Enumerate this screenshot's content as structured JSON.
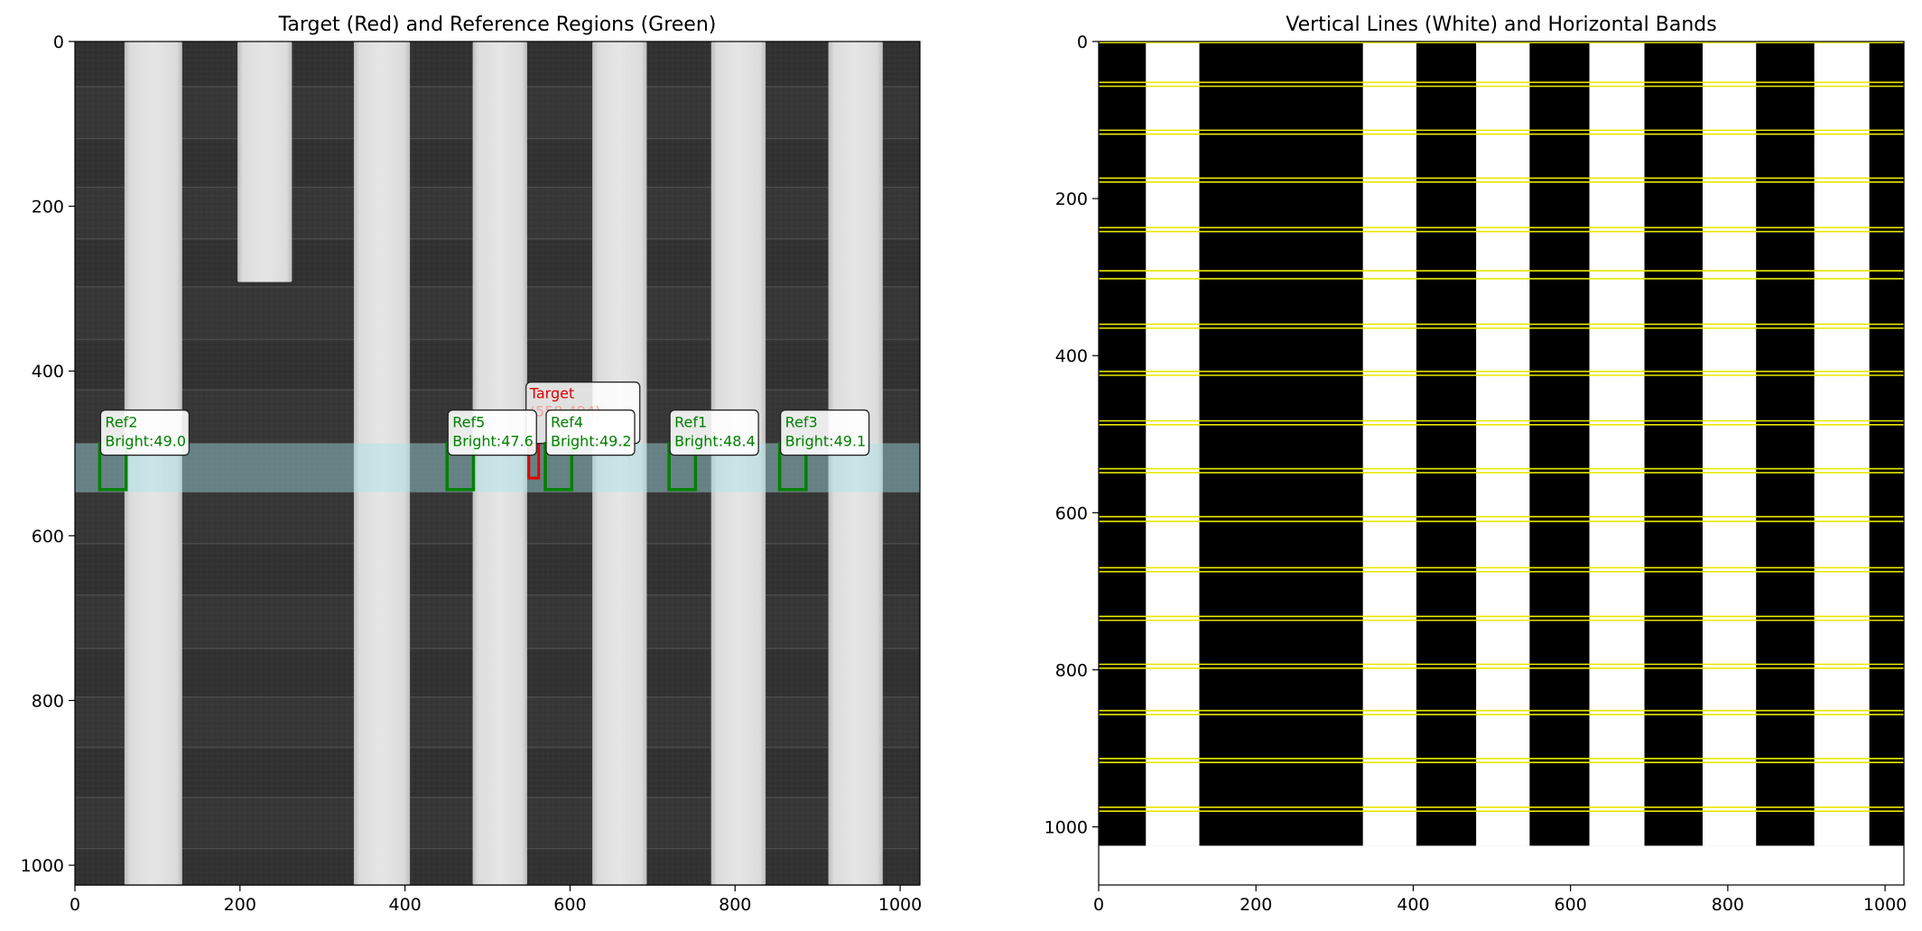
{
  "chart_data": [
    {
      "type": "heatmap",
      "title": "Target (Red) and Reference Regions (Green)",
      "xlabel": "",
      "ylabel": "",
      "xlim": [
        0,
        1024
      ],
      "ylim": [
        1024,
        0
      ],
      "x_ticks": [
        0,
        200,
        400,
        600,
        800,
        1000
      ],
      "y_ticks": [
        0,
        200,
        400,
        600,
        800,
        1000
      ],
      "image": "grayscale SEM image of vertical bright lines on dark striped background",
      "vertical_lines": [
        {
          "x0": 60,
          "x1": 130,
          "y0": 0,
          "y1": 1024
        },
        {
          "x0": 197,
          "x1": 263,
          "y0": 0,
          "y1": 292
        },
        {
          "x0": 338,
          "x1": 406,
          "y0": 0,
          "y1": 1024
        },
        {
          "x0": 482,
          "x1": 548,
          "y0": 0,
          "y1": 1024
        },
        {
          "x0": 627,
          "x1": 693,
          "y0": 0,
          "y1": 1024
        },
        {
          "x0": 771,
          "x1": 837,
          "y0": 0,
          "y1": 1024
        },
        {
          "x0": 913,
          "x1": 979,
          "y0": 0,
          "y1": 1024
        }
      ],
      "dark_band_edges": [
        55,
        118,
        177,
        240,
        298,
        362,
        423,
        488,
        547,
        610,
        672,
        737,
        796,
        857,
        918,
        980
      ],
      "highlight_band": {
        "y0": 488,
        "y1": 547,
        "color": "#a8e4e8"
      },
      "target": {
        "label": "Target",
        "coord_text": "(558,494)",
        "x0": 550,
        "x1": 562,
        "y0": 488,
        "y1": 530,
        "color": "#e00000"
      },
      "references": [
        {
          "label": "Ref2",
          "brightness": "Bright:49.0",
          "x0": 30,
          "x1": 62,
          "y0": 488,
          "y1": 544
        },
        {
          "label": "Ref5",
          "brightness": "Bright:47.6",
          "x0": 451,
          "x1": 483,
          "y0": 488,
          "y1": 544
        },
        {
          "label": "Ref4",
          "brightness": "Bright:49.2",
          "x0": 570,
          "x1": 602,
          "y0": 488,
          "y1": 544
        },
        {
          "label": "Ref1",
          "brightness": "Bright:48.4",
          "x0": 720,
          "x1": 752,
          "y0": 488,
          "y1": 544
        },
        {
          "label": "Ref3",
          "brightness": "Bright:49.1",
          "x0": 854,
          "x1": 886,
          "y0": 488,
          "y1": 544
        }
      ],
      "ref_color": "#008000"
    },
    {
      "type": "heatmap",
      "title": "Vertical Lines (White) and Horizontal Bands",
      "xlabel": "",
      "ylabel": "",
      "xlim": [
        0,
        1024
      ],
      "ylim": [
        1074,
        0
      ],
      "x_ticks": [
        0,
        200,
        400,
        600,
        800,
        1000
      ],
      "y_ticks": [
        0,
        200,
        400,
        600,
        800,
        1000
      ],
      "image": "binary mask: white vertical lines on black",
      "white_columns": [
        [
          60,
          128
        ],
        [
          336,
          404
        ],
        [
          480,
          548
        ],
        [
          624,
          694
        ],
        [
          768,
          836
        ],
        [
          910,
          980
        ]
      ],
      "mask_height": 1024,
      "band_lines": [
        [
          52,
          57
        ],
        [
          113,
          118
        ],
        [
          174,
          179
        ],
        [
          237,
          242
        ],
        [
          292,
          302
        ],
        [
          360,
          365
        ],
        [
          420,
          425
        ],
        [
          483,
          488
        ],
        [
          544,
          549
        ],
        [
          605,
          611
        ],
        [
          670,
          675
        ],
        [
          732,
          737
        ],
        [
          793,
          798
        ],
        [
          852,
          857
        ],
        [
          913,
          918
        ],
        [
          975,
          980
        ]
      ],
      "band_line_color": "#e8e800",
      "top_line": 0
    }
  ]
}
